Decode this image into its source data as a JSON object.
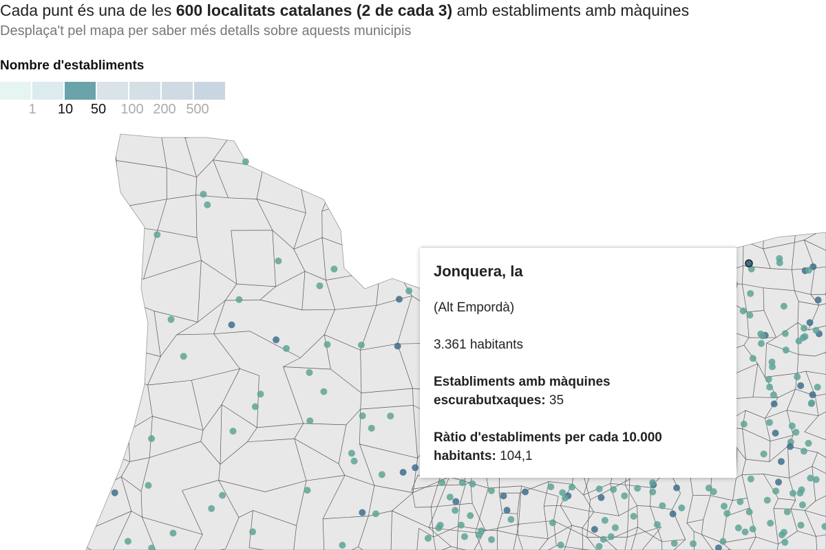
{
  "header": {
    "title_pre": "Cada punt és una de les ",
    "title_bold": "600 localitats catalanes (2 de cada 3)",
    "title_post": " amb establiments amb màquines",
    "subtitle": "Desplaça't pel mapa per saber més detalls sobre aquests municipis"
  },
  "legend": {
    "title": "Nombre d'establiments",
    "colors": [
      "#e6f4f2",
      "#dcecee",
      "#6aa3aa",
      "#d9e3e8",
      "#d5dfe6",
      "#cfdae3",
      "#c9d6e1"
    ],
    "ticks": [
      {
        "label": "1",
        "active": false
      },
      {
        "label": "10",
        "active": true
      },
      {
        "label": "50",
        "active": true
      },
      {
        "label": "100",
        "active": false
      },
      {
        "label": "200",
        "active": false
      },
      {
        "label": "500",
        "active": false
      }
    ]
  },
  "map": {
    "land_color": "#e8e8e8",
    "border_color": "#555555",
    "dot_color": "#5fa397",
    "dot_dark_color": "#3f6e8c"
  },
  "tooltip": {
    "name": "Jonquera, la",
    "region": "(Alt Empordà)",
    "population": "3.361 habitants",
    "establishments_label": "Establiments amb màquines escurabutxaques:",
    "establishments_value": "35",
    "ratio_label": "Ràtio d'establiments per cada 10.000 habitants:",
    "ratio_value": "104,1"
  }
}
